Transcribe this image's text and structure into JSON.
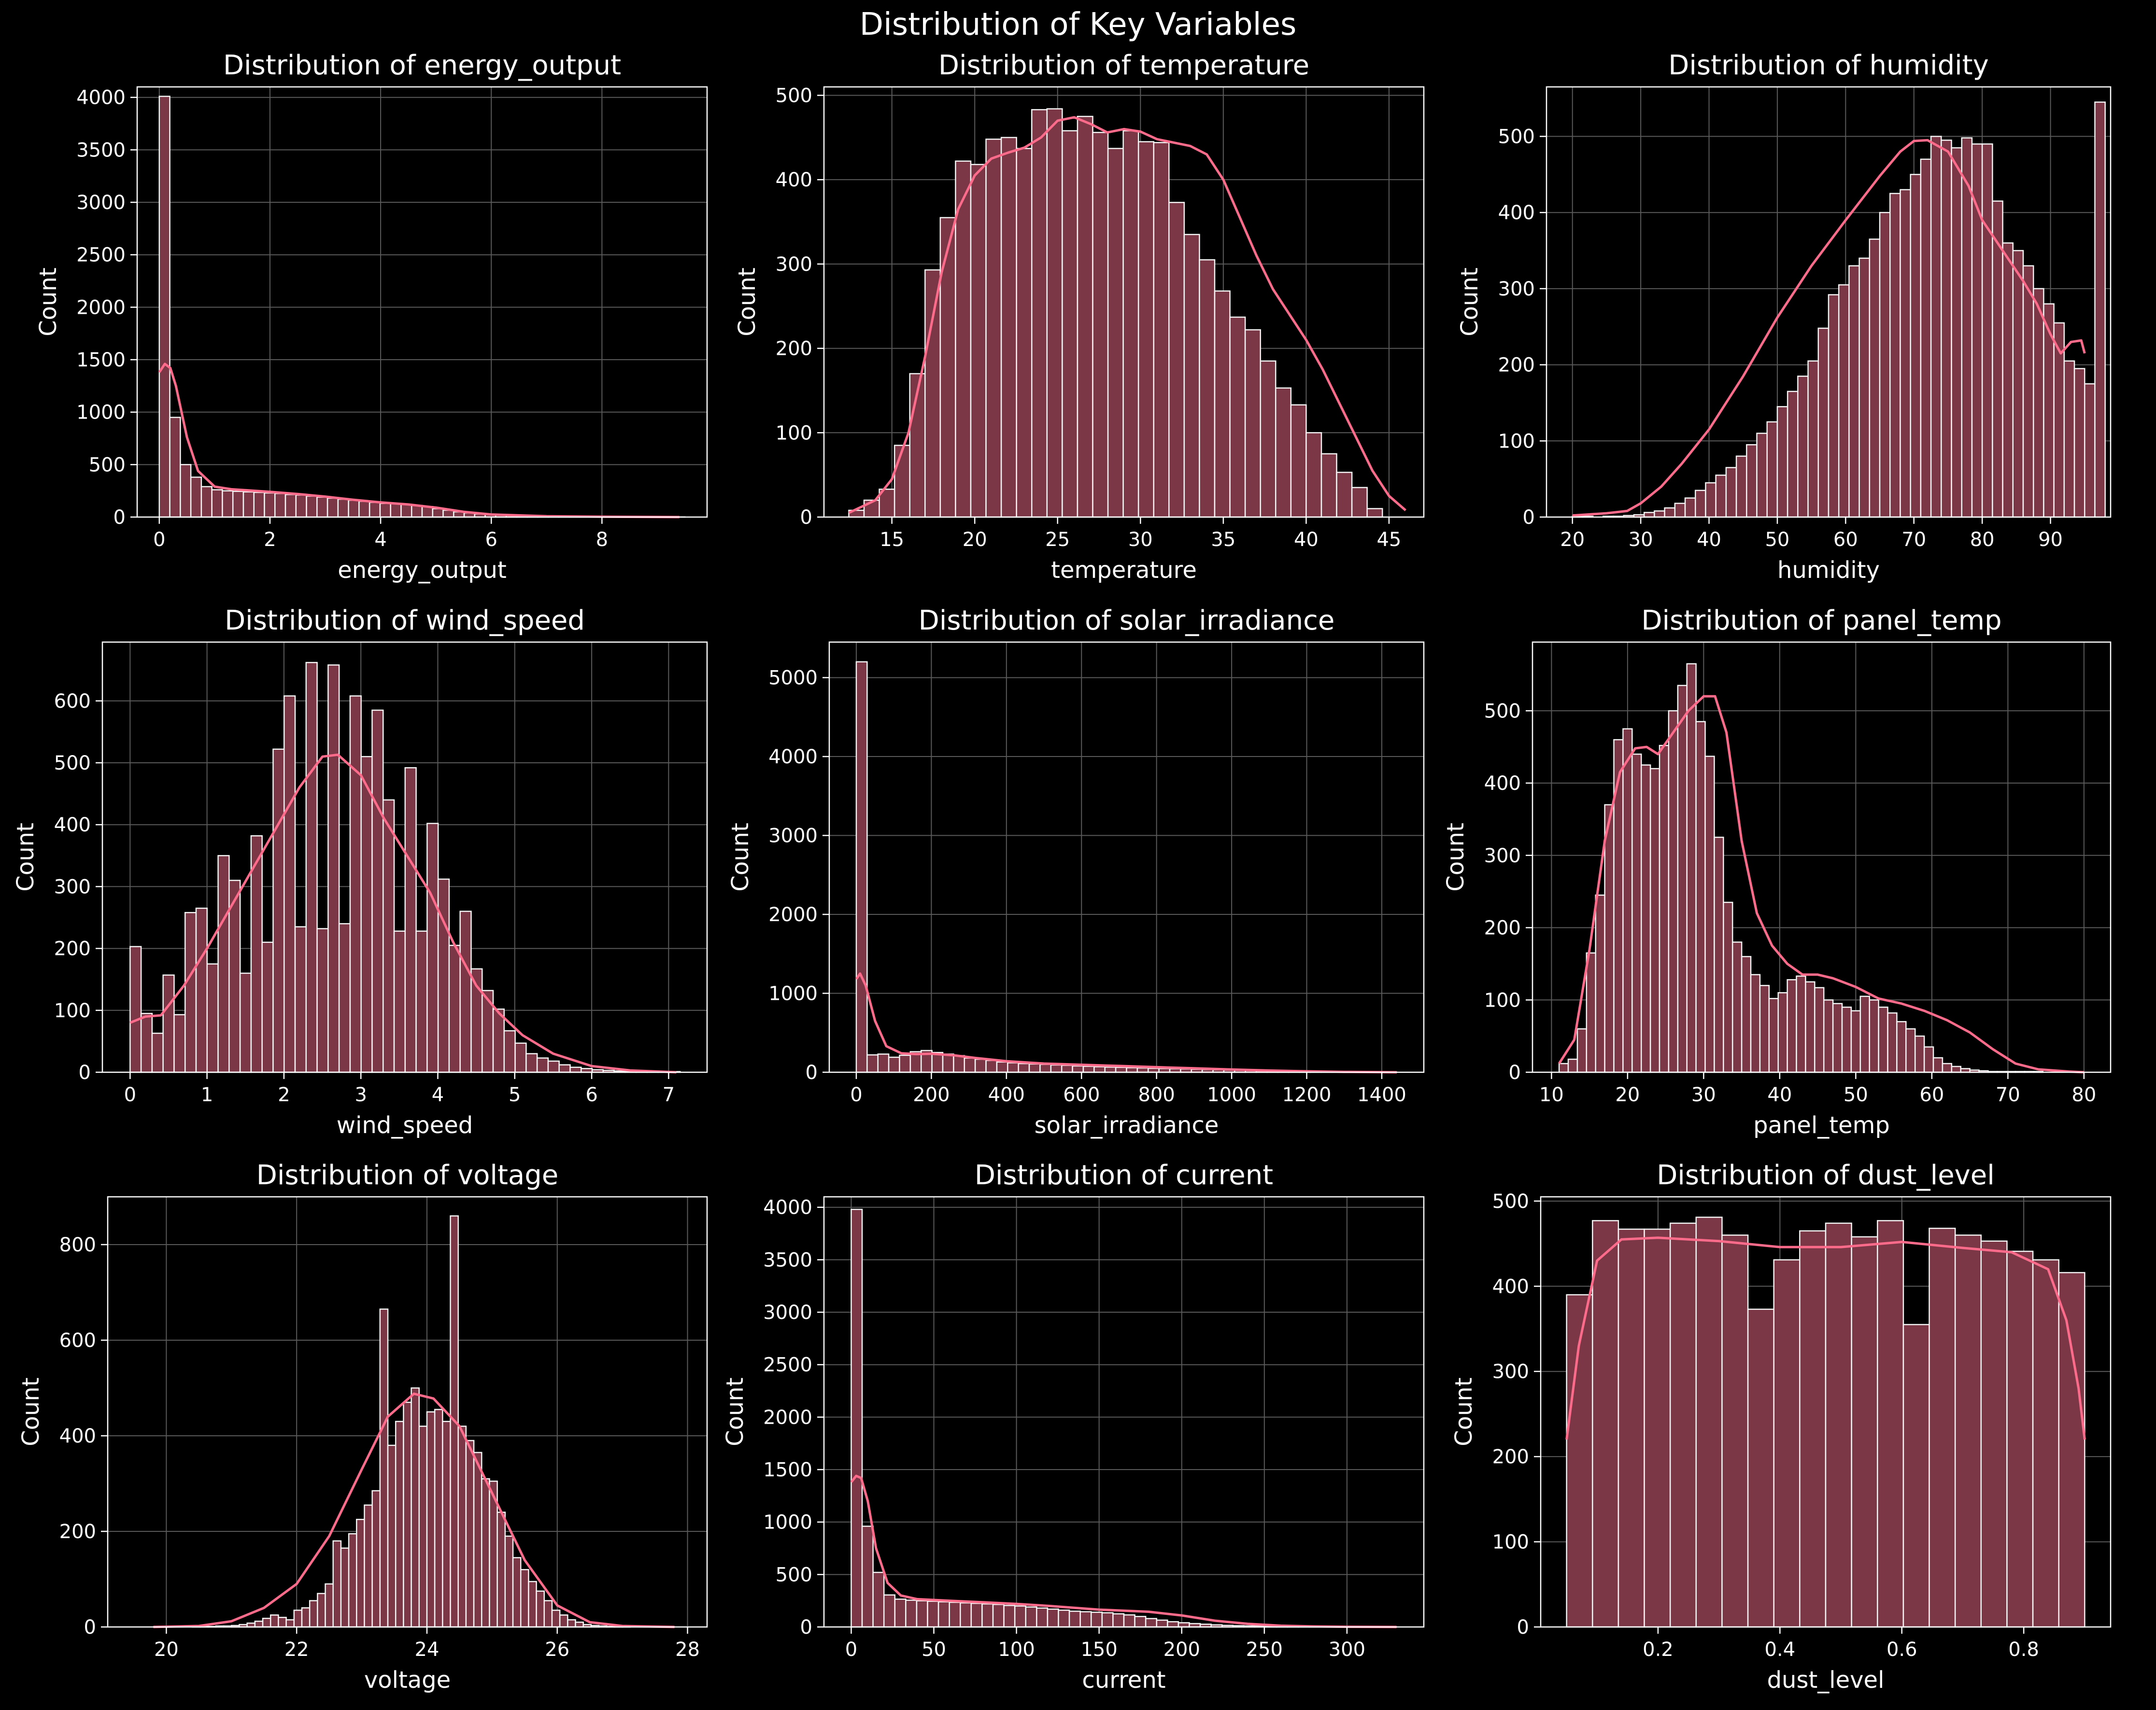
{
  "suptitle": "Distribution of Key Variables",
  "colors": {
    "bar": "#7b3746",
    "bar_edge": "#f4f4f4",
    "kde": "#ff6b8a",
    "grid": "#5a5a5a",
    "background": "#000000"
  },
  "chart_data": [
    {
      "type": "bar",
      "title": "Distribution of energy_output",
      "xlabel": "energy_output",
      "ylabel": "Count",
      "xlim": [
        -0.4,
        9.9
      ],
      "ylim": [
        0,
        4100
      ],
      "xticks": [
        0,
        2,
        4,
        6,
        8
      ],
      "yticks": [
        0,
        500,
        1000,
        1500,
        2000,
        2500,
        3000,
        3500,
        4000
      ],
      "bins": {
        "start": 0,
        "width": 0.19
      },
      "counts": [
        4010,
        950,
        500,
        380,
        290,
        260,
        250,
        245,
        240,
        235,
        230,
        225,
        215,
        210,
        200,
        190,
        180,
        170,
        160,
        150,
        140,
        130,
        130,
        120,
        110,
        100,
        80,
        65,
        50,
        40,
        30,
        25,
        20,
        15,
        12,
        10,
        8,
        6,
        5,
        4,
        3,
        3,
        2,
        2,
        2,
        1,
        1,
        1,
        1,
        1
      ],
      "kde": {
        "x": [
          0,
          0.1,
          0.2,
          0.3,
          0.5,
          0.7,
          1,
          1.3,
          1.6,
          2,
          2.5,
          3,
          3.5,
          4,
          4.5,
          5,
          5.5,
          6,
          7,
          8,
          9.4
        ],
        "y": [
          1380,
          1460,
          1420,
          1250,
          760,
          440,
          290,
          265,
          255,
          240,
          220,
          195,
          165,
          140,
          120,
          90,
          50,
          25,
          8,
          3,
          0
        ]
      }
    },
    {
      "type": "bar",
      "title": "Distribution of temperature",
      "xlabel": "temperature",
      "ylabel": "Count",
      "xlim": [
        10.9,
        47.1
      ],
      "ylim": [
        0,
        510
      ],
      "xticks": [
        15,
        20,
        25,
        30,
        35,
        40,
        45
      ],
      "yticks": [
        0,
        100,
        200,
        300,
        400,
        500
      ],
      "bins": {
        "start": 12.4,
        "width": 0.92
      },
      "counts": [
        8,
        20,
        33,
        85,
        170,
        293,
        355,
        422,
        418,
        448,
        450,
        437,
        483,
        484,
        458,
        475,
        456,
        437,
        458,
        445,
        444,
        373,
        335,
        305,
        268,
        237,
        222,
        185,
        153,
        133,
        100,
        75,
        53,
        35,
        10
      ],
      "kde": {
        "x": [
          12.4,
          14,
          15,
          16,
          17,
          18,
          19,
          20,
          21,
          22,
          23,
          24,
          25,
          26,
          27,
          28,
          29,
          30,
          31,
          32,
          33,
          34,
          35,
          36,
          37,
          38,
          39,
          40,
          41,
          42,
          43,
          44,
          45,
          46
        ],
        "y": [
          5,
          20,
          45,
          100,
          190,
          290,
          365,
          405,
          425,
          432,
          438,
          450,
          470,
          474,
          466,
          456,
          460,
          457,
          448,
          444,
          440,
          430,
          400,
          355,
          310,
          270,
          240,
          210,
          175,
          135,
          95,
          55,
          25,
          8
        ]
      }
    },
    {
      "type": "bar",
      "title": "Distribution of humidity",
      "xlabel": "humidity",
      "ylabel": "Count",
      "xlim": [
        16.2,
        98.8
      ],
      "ylim": [
        0,
        565
      ],
      "xticks": [
        20,
        30,
        40,
        50,
        60,
        70,
        80,
        90
      ],
      "yticks": [
        0,
        100,
        200,
        300,
        400,
        500
      ],
      "bins": {
        "start": 20,
        "width": 1.5
      },
      "counts": [
        1,
        1,
        0,
        1,
        1,
        2,
        3,
        6,
        8,
        12,
        18,
        25,
        35,
        45,
        55,
        65,
        80,
        95,
        110,
        125,
        145,
        165,
        185,
        205,
        248,
        292,
        305,
        330,
        340,
        365,
        400,
        425,
        430,
        450,
        470,
        500,
        495,
        485,
        498,
        490,
        490,
        415,
        360,
        350,
        330,
        300,
        280,
        255,
        205,
        195,
        175,
        545
      ],
      "kde": {
        "x": [
          20,
          25,
          28,
          30,
          33,
          36,
          40,
          45,
          50,
          55,
          60,
          65,
          68,
          70,
          72,
          75,
          78,
          80,
          83,
          86,
          88,
          90,
          91.5,
          93,
          94.5,
          95
        ],
        "y": [
          2,
          5,
          8,
          18,
          40,
          70,
          115,
          185,
          262,
          330,
          390,
          448,
          480,
          494,
          495,
          480,
          435,
          390,
          350,
          310,
          280,
          240,
          215,
          230,
          232,
          215
        ]
      }
    },
    {
      "type": "bar",
      "title": "Distribution of wind_speed",
      "xlabel": "wind_speed",
      "ylabel": "Count",
      "xlim": [
        -0.36,
        7.5
      ],
      "ylim": [
        0,
        695
      ],
      "xticks": [
        0,
        1,
        2,
        3,
        4,
        5,
        6,
        7
      ],
      "yticks": [
        0,
        100,
        200,
        300,
        400,
        500,
        600
      ],
      "bins": {
        "start": 0,
        "width": 0.143
      },
      "counts": [
        203,
        95,
        63,
        157,
        93,
        258,
        265,
        175,
        350,
        310,
        160,
        382,
        210,
        522,
        608,
        235,
        662,
        232,
        658,
        240,
        608,
        510,
        585,
        440,
        228,
        492,
        228,
        402,
        312,
        205,
        260,
        167,
        132,
        102,
        67,
        47,
        30,
        23,
        18,
        12,
        8,
        6,
        4,
        3,
        2,
        1,
        1,
        1,
        1,
        1
      ],
      "kde": {
        "x": [
          0,
          0.2,
          0.4,
          0.7,
          1,
          1.3,
          1.6,
          1.9,
          2.2,
          2.5,
          2.7,
          3,
          3.3,
          3.6,
          3.9,
          4.2,
          4.5,
          4.8,
          5.1,
          5.5,
          6,
          6.5,
          7.1
        ],
        "y": [
          80,
          90,
          92,
          140,
          200,
          265,
          330,
          395,
          460,
          510,
          513,
          480,
          410,
          350,
          290,
          210,
          140,
          95,
          60,
          30,
          10,
          3,
          0
        ]
      }
    },
    {
      "type": "bar",
      "title": "Distribution of solar_irradiance",
      "xlabel": "solar_irradiance",
      "ylabel": "Count",
      "xlim": [
        -72,
        1512
      ],
      "ylim": [
        0,
        5450
      ],
      "xticks": [
        0,
        200,
        400,
        600,
        800,
        1000,
        1200,
        1400
      ],
      "yticks": [
        0,
        1000,
        2000,
        3000,
        4000,
        5000
      ],
      "bins": {
        "start": 0,
        "width": 28.8
      },
      "counts": [
        5200,
        220,
        230,
        190,
        215,
        260,
        275,
        250,
        230,
        210,
        180,
        165,
        150,
        130,
        120,
        110,
        105,
        100,
        92,
        88,
        80,
        75,
        70,
        65,
        62,
        58,
        55,
        50,
        48,
        45,
        42,
        38,
        35,
        32,
        28,
        25,
        22,
        18,
        15,
        12,
        10,
        8,
        6,
        5,
        4,
        3,
        2,
        2,
        1,
        1
      ],
      "kde": {
        "x": [
          0,
          10,
          25,
          50,
          80,
          120,
          160,
          200,
          260,
          320,
          400,
          500,
          600,
          700,
          800,
          900,
          1000,
          1100,
          1200,
          1300,
          1440
        ],
        "y": [
          1180,
          1250,
          1100,
          650,
          330,
          240,
          230,
          235,
          215,
          180,
          140,
          110,
          95,
          80,
          65,
          50,
          35,
          22,
          12,
          5,
          0
        ]
      }
    },
    {
      "type": "bar",
      "title": "Distribution of panel_temp",
      "xlabel": "panel_temp",
      "ylabel": "Count",
      "xlim": [
        7.5,
        83.5
      ],
      "ylim": [
        0,
        595
      ],
      "xticks": [
        10,
        20,
        30,
        40,
        50,
        60,
        70,
        80
      ],
      "yticks": [
        0,
        100,
        200,
        300,
        400,
        500
      ],
      "bins": {
        "start": 11,
        "width": 1.2
      },
      "counts": [
        12,
        18,
        60,
        165,
        245,
        370,
        460,
        475,
        440,
        425,
        420,
        452,
        500,
        535,
        565,
        485,
        437,
        325,
        235,
        180,
        160,
        135,
        120,
        102,
        110,
        128,
        133,
        125,
        117,
        100,
        95,
        90,
        85,
        105,
        100,
        90,
        82,
        70,
        60,
        50,
        35,
        20,
        12,
        8,
        5,
        3,
        2,
        1,
        1,
        1,
        1,
        1,
        1,
        0,
        0,
        0,
        0,
        0
      ],
      "kde": {
        "x": [
          11,
          13,
          15,
          17,
          19,
          21,
          22.5,
          24,
          26,
          28,
          30,
          31.5,
          33,
          35,
          37,
          39,
          41,
          43,
          45,
          47,
          50,
          53,
          56,
          59,
          62,
          65,
          68,
          71,
          74,
          78,
          80
        ],
        "y": [
          12,
          45,
          170,
          320,
          415,
          448,
          450,
          440,
          470,
          500,
          520,
          520,
          470,
          320,
          220,
          175,
          150,
          135,
          135,
          130,
          118,
          102,
          95,
          85,
          72,
          55,
          32,
          12,
          4,
          1,
          0
        ]
      }
    },
    {
      "type": "bar",
      "title": "Distribution of voltage",
      "xlabel": "voltage",
      "ylabel": "Count",
      "xlim": [
        19.1,
        28.3
      ],
      "ylim": [
        0,
        900
      ],
      "xticks": [
        20,
        22,
        24,
        26,
        28
      ],
      "yticks": [
        0,
        200,
        400,
        600,
        800
      ],
      "bins": {
        "start": 20.4,
        "width": 0.12
      },
      "counts": [
        1,
        1,
        1,
        2,
        2,
        3,
        5,
        8,
        12,
        18,
        25,
        20,
        15,
        35,
        40,
        55,
        70,
        90,
        180,
        165,
        195,
        225,
        255,
        285,
        665,
        380,
        430,
        470,
        500,
        420,
        450,
        455,
        430,
        860,
        420,
        390,
        365,
        310,
        305,
        240,
        190,
        145,
        120,
        95,
        75,
        55,
        35,
        25,
        15,
        10,
        5,
        3,
        2,
        1,
        1,
        1
      ],
      "kde": {
        "x": [
          19.8,
          20.5,
          21,
          21.5,
          22,
          22.5,
          23,
          23.4,
          23.8,
          24.1,
          24.5,
          25,
          25.5,
          26,
          26.5,
          27,
          27.8
        ],
        "y": [
          0,
          2,
          12,
          40,
          90,
          190,
          330,
          440,
          488,
          478,
          420,
          280,
          140,
          45,
          10,
          2,
          0
        ]
      }
    },
    {
      "type": "bar",
      "title": "Distribution of current",
      "xlabel": "current",
      "ylabel": "Count",
      "xlim": [
        -16.5,
        346.5
      ],
      "ylim": [
        0,
        4100
      ],
      "xticks": [
        0,
        50,
        100,
        150,
        200,
        250,
        300
      ],
      "yticks": [
        0,
        500,
        1000,
        1500,
        2000,
        2500,
        3000,
        3500,
        4000
      ],
      "bins": {
        "start": 0,
        "width": 6.6
      },
      "counts": [
        3980,
        960,
        520,
        305,
        265,
        255,
        250,
        245,
        240,
        235,
        230,
        225,
        220,
        215,
        205,
        200,
        190,
        180,
        170,
        160,
        150,
        145,
        140,
        135,
        125,
        115,
        100,
        80,
        65,
        50,
        40,
        32,
        26,
        20,
        15,
        12,
        10,
        8,
        6,
        5,
        4,
        3,
        3,
        2,
        2,
        1,
        1,
        1,
        1,
        1
      ],
      "kde": {
        "x": [
          0,
          3,
          6,
          10,
          15,
          22,
          30,
          40,
          60,
          80,
          100,
          120,
          150,
          180,
          200,
          220,
          240,
          260,
          280,
          300,
          330
        ],
        "y": [
          1380,
          1440,
          1420,
          1200,
          750,
          420,
          300,
          265,
          250,
          235,
          220,
          200,
          165,
          145,
          110,
          60,
          30,
          12,
          5,
          2,
          0
        ]
      }
    },
    {
      "type": "bar",
      "title": "Distribution of dust_level",
      "xlabel": "dust_level",
      "ylabel": "Count",
      "xlim": [
        0.0075,
        0.9425
      ],
      "ylim": [
        0,
        505
      ],
      "xticks": [
        0.2,
        0.4,
        0.6,
        0.8
      ],
      "yticks": [
        0,
        100,
        200,
        300,
        400,
        500
      ],
      "bins": {
        "start": 0.05,
        "width": 0.0425
      },
      "counts": [
        390,
        477,
        467,
        467,
        474,
        481,
        460,
        373,
        431,
        465,
        474,
        458,
        477,
        355,
        468,
        460,
        453,
        441,
        431,
        416
      ],
      "kde": {
        "x": [
          0.05,
          0.07,
          0.1,
          0.14,
          0.2,
          0.3,
          0.4,
          0.5,
          0.6,
          0.7,
          0.78,
          0.84,
          0.87,
          0.89,
          0.9
        ],
        "y": [
          220,
          330,
          430,
          455,
          457,
          453,
          446,
          446,
          452,
          445,
          440,
          420,
          360,
          280,
          220
        ]
      }
    }
  ]
}
